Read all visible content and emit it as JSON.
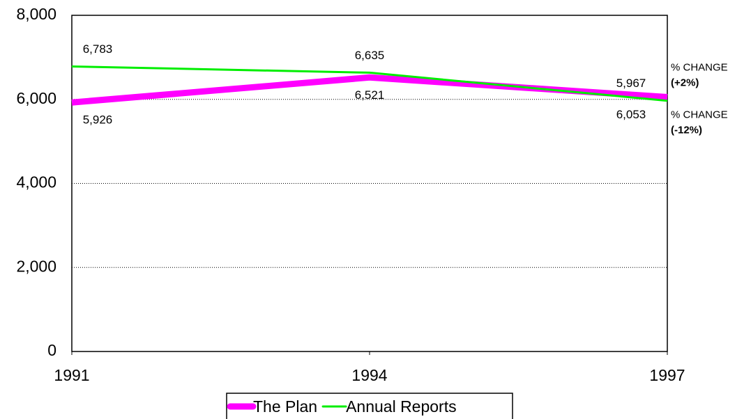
{
  "chart_data": {
    "type": "line",
    "x": [
      1991,
      1994,
      1997
    ],
    "xlim": [
      1991,
      1997
    ],
    "xticks": [
      1991,
      1994,
      1997
    ],
    "ylim": [
      0,
      8000
    ],
    "yticks": [
      0,
      {
        "value": 2000,
        "label": "2,000"
      },
      {
        "value": 4000,
        "label": "4,000"
      },
      {
        "value": 6000,
        "label": "6,000"
      },
      {
        "value": 8000,
        "label": "8,000"
      }
    ],
    "grid": true,
    "legend": "bottom",
    "series": [
      {
        "name": "The Plan",
        "color": "#ff00ff",
        "width": 9,
        "label_side": "below",
        "values": [
          5926,
          6521,
          6053
        ],
        "value_labels": [
          "5,926",
          "6,521",
          "6,053"
        ],
        "annotation": {
          "text": "% CHANGE",
          "detail": "(+2%)"
        }
      },
      {
        "name": "Annual Reports",
        "color": "#00ee00",
        "width": 3,
        "label_side": "above",
        "values": [
          6783,
          6635,
          5967
        ],
        "value_labels": [
          "6,783",
          "6,635",
          "5,967"
        ],
        "annotation": {
          "text": "% CHANGE",
          "detail": "(-12%)"
        }
      }
    ]
  }
}
